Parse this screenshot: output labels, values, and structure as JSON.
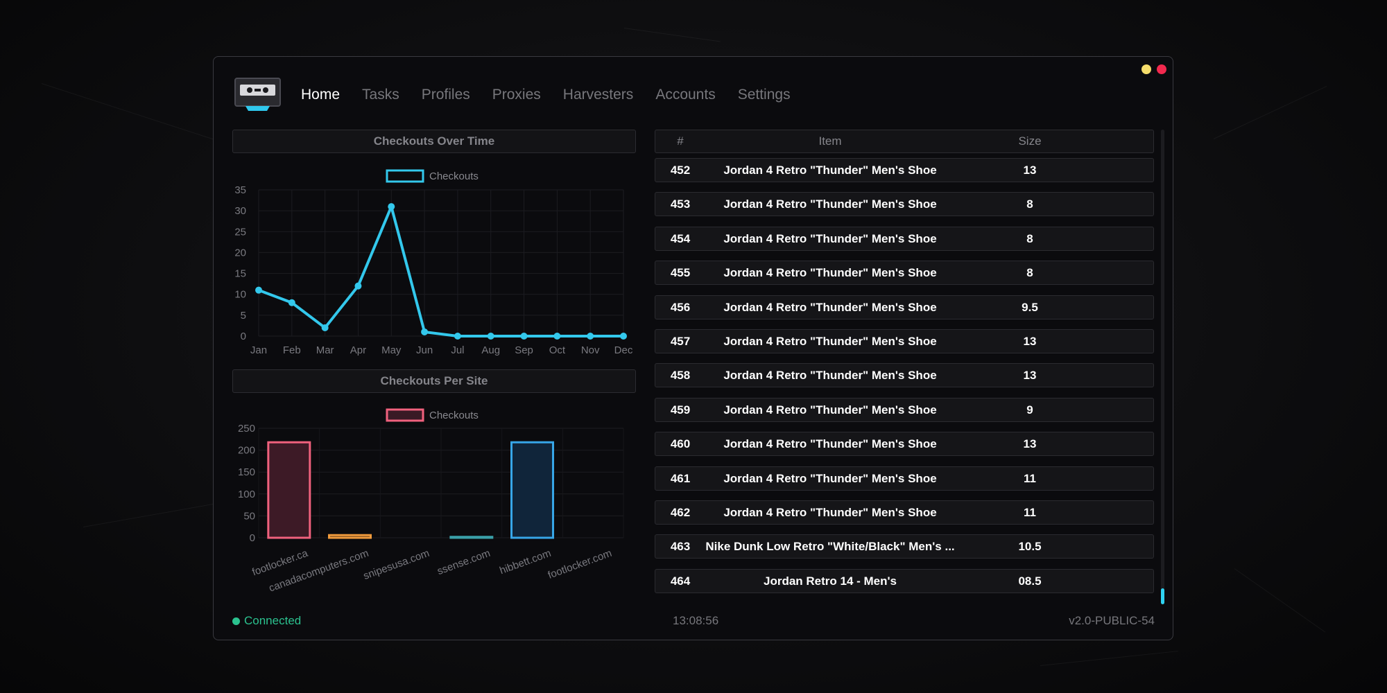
{
  "nav": {
    "items": [
      {
        "label": "Home",
        "active": true
      },
      {
        "label": "Tasks",
        "active": false
      },
      {
        "label": "Profiles",
        "active": false
      },
      {
        "label": "Proxies",
        "active": false
      },
      {
        "label": "Harvesters",
        "active": false
      },
      {
        "label": "Accounts",
        "active": false
      },
      {
        "label": "Settings",
        "active": false
      }
    ]
  },
  "window_controls": {
    "minimize_color": "#f5dd6b",
    "close_color": "#f2294e"
  },
  "charts": {
    "line_title": "Checkouts Over Time",
    "bar_title": "Checkouts Per Site"
  },
  "chart_data": [
    {
      "type": "line",
      "title": "Checkouts Over Time",
      "legend": [
        "Checkouts"
      ],
      "legend_position": "top",
      "categories": [
        "Jan",
        "Feb",
        "Mar",
        "Apr",
        "May",
        "Jun",
        "Jul",
        "Aug",
        "Sep",
        "Oct",
        "Nov",
        "Dec"
      ],
      "series": [
        {
          "name": "Checkouts",
          "color": "#33c8ec",
          "values": [
            11,
            8,
            2,
            12,
            31,
            1,
            0,
            0,
            0,
            0,
            0,
            0
          ]
        }
      ],
      "ylim": [
        0,
        35
      ],
      "yticks": [
        0,
        5,
        10,
        15,
        20,
        25,
        30,
        35
      ],
      "grid": true
    },
    {
      "type": "bar",
      "title": "Checkouts Per Site",
      "legend": [
        "Checkouts"
      ],
      "legend_position": "top",
      "categories": [
        "footlocker.ca",
        "canadacomputers.com",
        "snipesusa.com",
        "ssense.com",
        "hibbett.com",
        "footlocker.com"
      ],
      "series": [
        {
          "name": "Checkouts",
          "values": [
            218,
            6,
            0,
            2,
            218,
            0
          ]
        }
      ],
      "bar_colors": [
        "#f0617d",
        "#f19b3c",
        "#f5d05f",
        "#3aa0a8",
        "#37a6e8",
        "#9a6df0"
      ],
      "ylim": [
        0,
        250
      ],
      "yticks": [
        0,
        50,
        100,
        150,
        200,
        250
      ],
      "grid": true
    }
  ],
  "table": {
    "headers": {
      "num": "#",
      "item": "Item",
      "size": "Size"
    },
    "rows": [
      {
        "num": "452",
        "item": "Jordan 4 Retro \"Thunder\" Men's Shoe",
        "size": "13"
      },
      {
        "num": "453",
        "item": "Jordan 4 Retro \"Thunder\" Men's Shoe",
        "size": "8"
      },
      {
        "num": "454",
        "item": "Jordan 4 Retro \"Thunder\" Men's Shoe",
        "size": "8"
      },
      {
        "num": "455",
        "item": "Jordan 4 Retro \"Thunder\" Men's Shoe",
        "size": "8"
      },
      {
        "num": "456",
        "item": "Jordan 4 Retro \"Thunder\" Men's Shoe",
        "size": "9.5"
      },
      {
        "num": "457",
        "item": "Jordan 4 Retro \"Thunder\" Men's Shoe",
        "size": "13"
      },
      {
        "num": "458",
        "item": "Jordan 4 Retro \"Thunder\" Men's Shoe",
        "size": "13"
      },
      {
        "num": "459",
        "item": "Jordan 4 Retro \"Thunder\" Men's Shoe",
        "size": "9"
      },
      {
        "num": "460",
        "item": "Jordan 4 Retro \"Thunder\" Men's Shoe",
        "size": "13"
      },
      {
        "num": "461",
        "item": "Jordan 4 Retro \"Thunder\" Men's Shoe",
        "size": "11"
      },
      {
        "num": "462",
        "item": "Jordan 4 Retro \"Thunder\" Men's Shoe",
        "size": "11"
      },
      {
        "num": "463",
        "item": "Nike Dunk Low Retro \"White/Black\" Men's ...",
        "size": "10.5"
      },
      {
        "num": "464",
        "item": "Jordan Retro 14 - Men's",
        "size": "08.5"
      }
    ]
  },
  "status": {
    "label": "Connected",
    "color": "#2bc28f"
  },
  "clock": "13:08:56",
  "version": "v2.0-PUBLIC-54"
}
